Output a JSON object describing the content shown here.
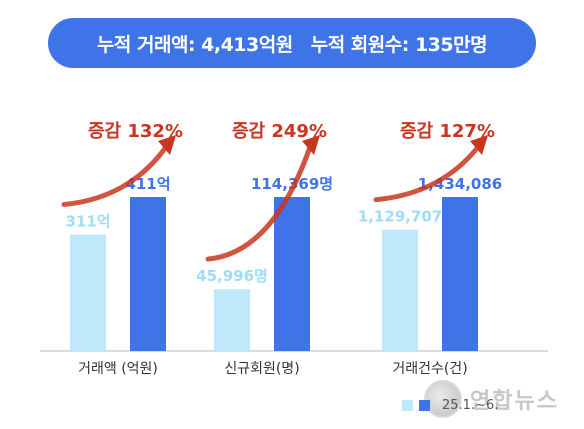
{
  "banner": {
    "left_text": "누적 거래액: 4,413억원",
    "right_text": "누적 회원수: 135만명"
  },
  "colors": {
    "before": "#bfe8fb",
    "after": "#3f73e8",
    "before_label": "#9fdcf5",
    "after_label": "#3f73e8",
    "increase": "#c8361f",
    "axis": "#cfcfcf"
  },
  "legend": {
    "period_text": "25.1.~6."
  },
  "watermark": {
    "text": "연합뉴스"
  },
  "chart_data": {
    "type": "bar",
    "categories": [
      "거래액 (억원)",
      "신규회원(명)",
      "거래건수(건)"
    ],
    "series": [
      {
        "values": [
          311,
          45996,
          1129707
        ],
        "labels": [
          "311억",
          "45,996명",
          "1,129,707"
        ]
      },
      {
        "values": [
          411,
          114369,
          1434086
        ],
        "labels": [
          "411억",
          "114,369명",
          "1,434,086"
        ]
      }
    ],
    "annotations": [
      "증감 132%",
      "증감 249%",
      "증감 127%"
    ]
  }
}
